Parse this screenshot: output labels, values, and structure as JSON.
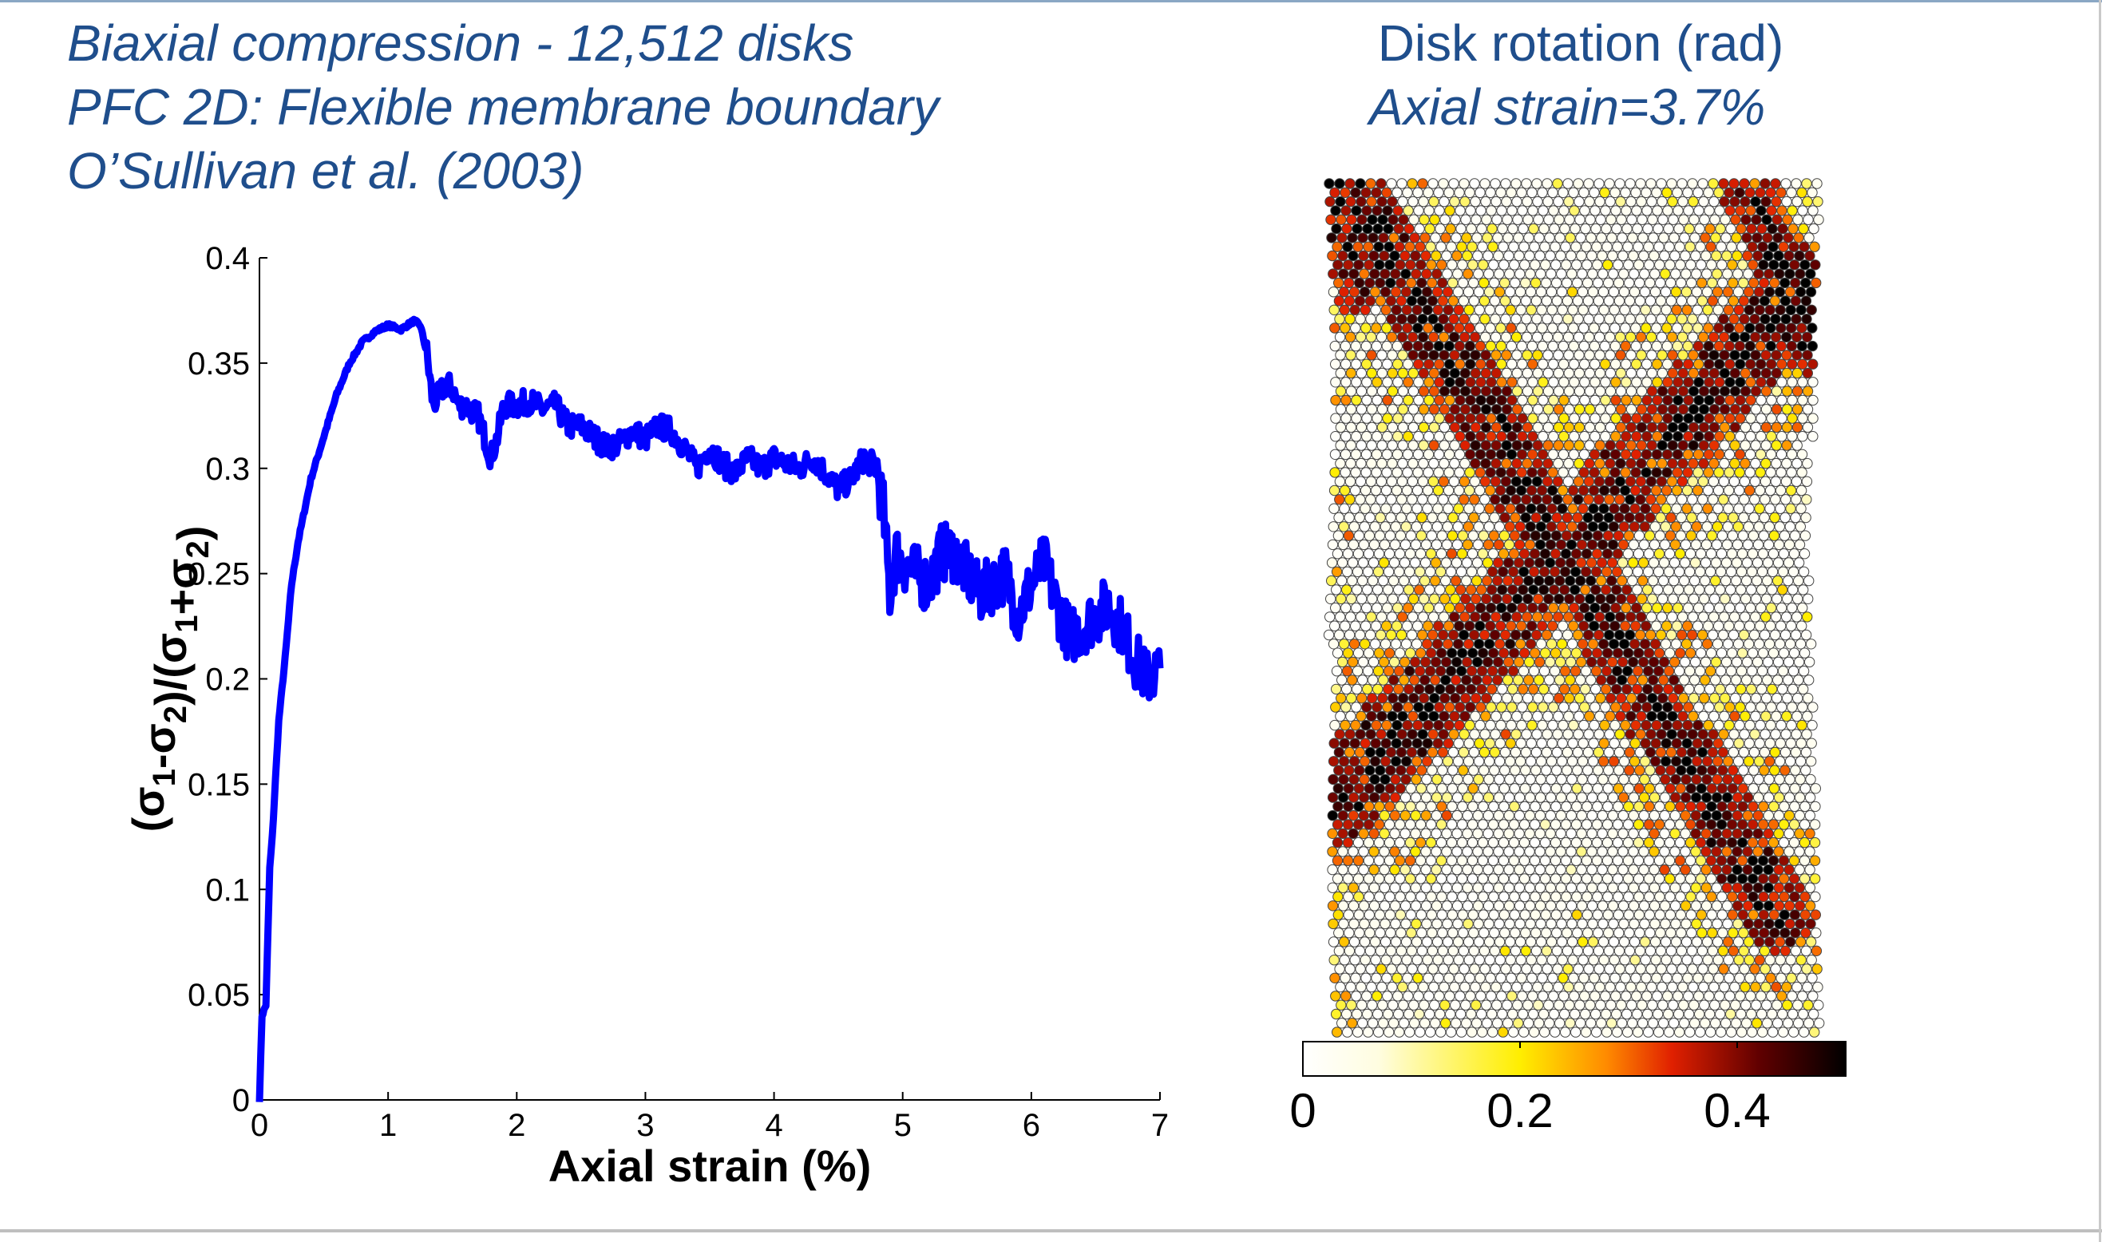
{
  "header": {
    "lines": [
      "Biaxial compression - 12,512 disks",
      "PFC 2D: Flexible membrane boundary",
      "O’Sullivan et al. (2003)"
    ]
  },
  "rotation_panel": {
    "title": "Disk rotation (rad)",
    "subtitle": "Axial strain=3.7%",
    "colorbar_ticks": [
      "0",
      "0.2",
      "0.4"
    ],
    "colorbar_range": [
      0,
      0.5
    ],
    "colors": {
      "low": "#ffffff",
      "mid_yellow": "#ffee00",
      "orange": "#ff8a00",
      "red": "#e02000",
      "dark": "#000000"
    }
  },
  "chart_data": {
    "type": "line",
    "title": "",
    "xlabel": "Axial strain (%)",
    "ylabel": "(σ1-σ2)/(σ1+σ2)",
    "xlim": [
      0,
      7
    ],
    "ylim": [
      0,
      0.4
    ],
    "xticks": [
      "0",
      "1",
      "2",
      "3",
      "4",
      "5",
      "6",
      "7"
    ],
    "yticks": [
      "0",
      "0.05",
      "0.1",
      "0.15",
      "0.2",
      "0.25",
      "0.3",
      "0.35",
      "0.4"
    ],
    "grid": false,
    "series": [
      {
        "color": "#0000ff",
        "x": [
          0,
          0.02,
          0.05,
          0.08,
          0.1,
          0.15,
          0.2,
          0.25,
          0.3,
          0.35,
          0.4,
          0.5,
          0.6,
          0.7,
          0.8,
          0.9,
          1.0,
          1.1,
          1.2,
          1.25,
          1.3,
          1.35,
          1.4,
          1.45,
          1.5,
          1.55,
          1.6,
          1.7,
          1.8,
          1.85,
          1.9,
          2.0,
          2.1,
          2.2,
          2.3,
          2.4,
          2.5,
          2.6,
          2.7,
          2.8,
          2.9,
          3.0,
          3.1,
          3.2,
          3.3,
          3.4,
          3.5,
          3.6,
          3.7,
          3.8,
          3.9,
          4.0,
          4.1,
          4.2,
          4.3,
          4.4,
          4.5,
          4.6,
          4.7,
          4.8,
          4.85,
          4.9,
          4.95,
          5.0,
          5.1,
          5.2,
          5.3,
          5.4,
          5.5,
          5.6,
          5.7,
          5.8,
          5.9,
          6.0,
          6.1,
          6.2,
          6.3,
          6.4,
          6.5,
          6.6,
          6.7,
          6.8,
          6.9,
          7.0
        ],
        "y": [
          0.0,
          0.04,
          0.045,
          0.11,
          0.125,
          0.18,
          0.21,
          0.245,
          0.265,
          0.28,
          0.295,
          0.315,
          0.335,
          0.35,
          0.36,
          0.365,
          0.368,
          0.366,
          0.37,
          0.368,
          0.355,
          0.33,
          0.335,
          0.34,
          0.338,
          0.33,
          0.33,
          0.325,
          0.305,
          0.315,
          0.33,
          0.33,
          0.332,
          0.328,
          0.33,
          0.32,
          0.32,
          0.315,
          0.31,
          0.312,
          0.318,
          0.314,
          0.32,
          0.318,
          0.31,
          0.3,
          0.31,
          0.302,
          0.298,
          0.305,
          0.3,
          0.305,
          0.302,
          0.3,
          0.305,
          0.298,
          0.29,
          0.295,
          0.305,
          0.3,
          0.28,
          0.24,
          0.26,
          0.255,
          0.25,
          0.245,
          0.26,
          0.26,
          0.25,
          0.24,
          0.245,
          0.25,
          0.23,
          0.245,
          0.255,
          0.235,
          0.22,
          0.225,
          0.23,
          0.235,
          0.225,
          0.21,
          0.2,
          0.205
        ]
      }
    ]
  }
}
